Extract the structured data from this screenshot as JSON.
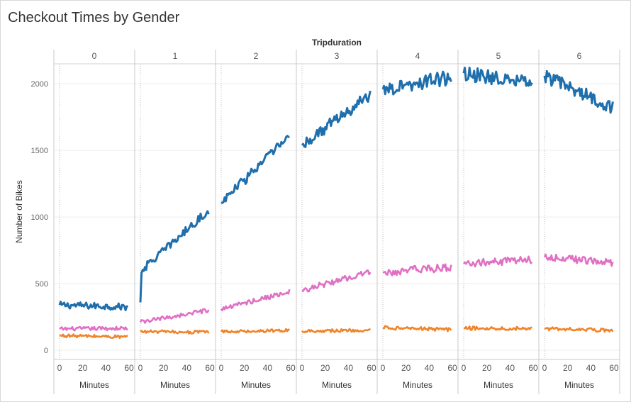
{
  "title": "Checkout Times by Gender",
  "chart_data": {
    "type": "line",
    "title": "Checkout Times by Gender",
    "column_header": "Tripduration",
    "panels": [
      "0",
      "1",
      "2",
      "3",
      "4",
      "5",
      "6"
    ],
    "xlabel": "Minutes",
    "ylabel": "Number of Bikes",
    "xlim": [
      0,
      60
    ],
    "xticks": [
      0,
      20,
      40,
      60
    ],
    "ylim": [
      0,
      2150
    ],
    "yticks": [
      0,
      500,
      1000,
      1500,
      2000
    ],
    "grid": true,
    "legend": "none",
    "series": [
      {
        "color": "#1f6fad",
        "panels": [
          {
            "start": 340,
            "end": 325,
            "noise": 25
          },
          {
            "start": 360,
            "end": 1050,
            "noise": 30,
            "jump_to": 600
          },
          {
            "start": 1110,
            "end": 1610,
            "noise": 40
          },
          {
            "start": 1540,
            "end": 1920,
            "noise": 45
          },
          {
            "start": 1960,
            "end": 2050,
            "noise": 55
          },
          {
            "start": 2080,
            "end": 2000,
            "noise": 55
          },
          {
            "start": 2060,
            "end": 1820,
            "noise": 50
          }
        ]
      },
      {
        "color": "#e070c4",
        "panels": [
          {
            "start": 160,
            "end": 165,
            "noise": 14
          },
          {
            "start": 210,
            "end": 300,
            "noise": 16
          },
          {
            "start": 310,
            "end": 440,
            "noise": 18
          },
          {
            "start": 450,
            "end": 590,
            "noise": 22
          },
          {
            "start": 585,
            "end": 625,
            "noise": 30
          },
          {
            "start": 650,
            "end": 680,
            "noise": 28
          },
          {
            "start": 700,
            "end": 660,
            "noise": 28
          }
        ]
      },
      {
        "color": "#f0842a",
        "panels": [
          {
            "start": 110,
            "end": 100,
            "noise": 12
          },
          {
            "start": 140,
            "end": 135,
            "noise": 12
          },
          {
            "start": 140,
            "end": 150,
            "noise": 12
          },
          {
            "start": 145,
            "end": 150,
            "noise": 12
          },
          {
            "start": 170,
            "end": 155,
            "noise": 14
          },
          {
            "start": 165,
            "end": 165,
            "noise": 14
          },
          {
            "start": 160,
            "end": 150,
            "noise": 14
          }
        ]
      }
    ]
  }
}
